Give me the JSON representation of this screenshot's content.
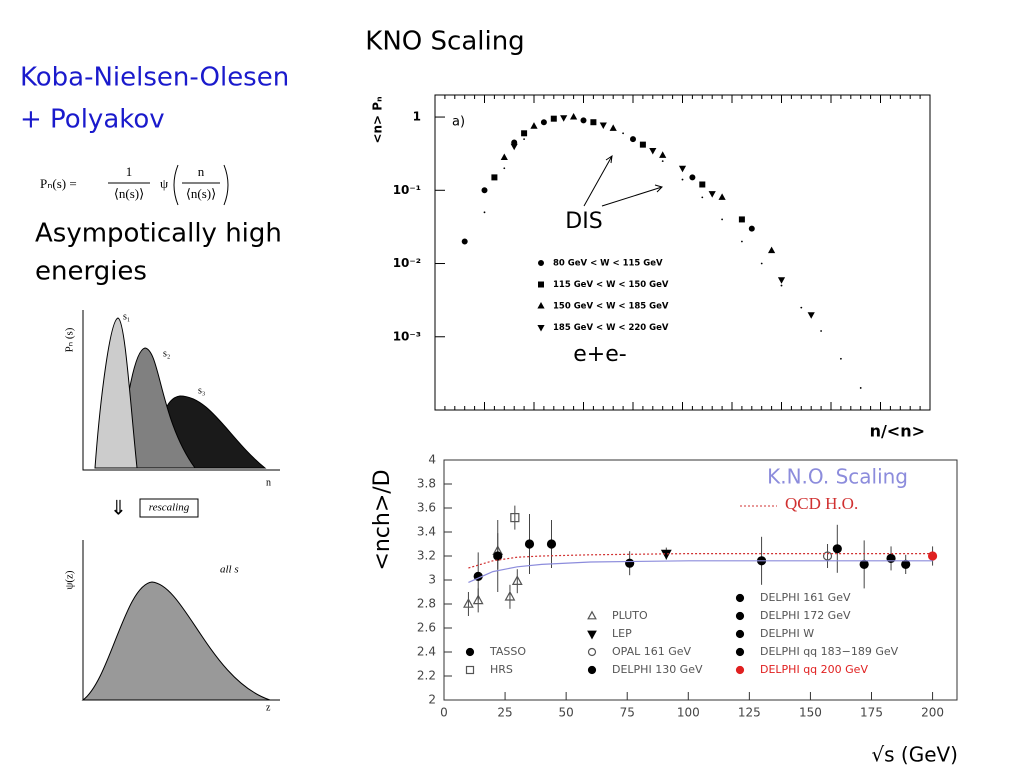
{
  "slide": {
    "title": "KNO Scaling",
    "heading": [
      "Koba-Nielsen-Olesen",
      "+ Polyakov"
    ],
    "formula": {
      "lhs": "Pₙ(s) =",
      "num": "1",
      "den": "⟨n(s)⟩",
      "psi": "ψ",
      "arg_num": "n",
      "arg_den": "⟨n(s)⟩"
    },
    "text": [
      "Asympotically high",
      "energies"
    ]
  },
  "sketch": {
    "top": {
      "y_label": "Pₙ (s)",
      "x_label": "n",
      "curves": [
        "s₁",
        "s₂",
        "s₃"
      ]
    },
    "arrow_label": "rescaling",
    "bottom": {
      "y_label": "ψ(z)",
      "x_label": "z",
      "note": "all s"
    }
  },
  "chart_data": [
    {
      "type": "scatter",
      "y_label": "<n> Pₙ",
      "x_label": "n/<n>",
      "panel_label": "a)",
      "log_y": true,
      "xlim": [
        0,
        5
      ],
      "ylim": [
        0.0001,
        2
      ],
      "yticks": [
        1,
        {
          "value": 0.1,
          "label": "10⁻¹"
        },
        {
          "value": 0.01,
          "label": "10⁻²"
        },
        {
          "value": 0.001,
          "label": "10⁻³"
        }
      ],
      "annotation": "DIS",
      "series": [
        {
          "name": "80 GeV < W < 115 GeV",
          "marker": "circle",
          "color": "#000000",
          "x": [
            0.3,
            0.5,
            0.8,
            1.1,
            1.5,
            2.0,
            2.6,
            3.2
          ],
          "values": [
            0.02,
            0.1,
            0.45,
            0.85,
            0.9,
            0.5,
            0.15,
            0.03
          ]
        },
        {
          "name": "115 GeV < W < 150 GeV",
          "marker": "square",
          "color": "#000000",
          "x": [
            0.6,
            0.9,
            1.2,
            1.6,
            2.1,
            2.7,
            3.1
          ],
          "values": [
            0.15,
            0.6,
            0.95,
            0.85,
            0.42,
            0.12,
            0.04
          ]
        },
        {
          "name": "150 GeV < W < 185 GeV",
          "marker": "triangle",
          "color": "#000000",
          "x": [
            0.7,
            1.0,
            1.4,
            1.8,
            2.3,
            2.9,
            3.4
          ],
          "values": [
            0.28,
            0.75,
            1.0,
            0.7,
            0.3,
            0.08,
            0.015
          ]
        },
        {
          "name": "185 GeV < W < 220 GeV",
          "marker": "triangle-down",
          "color": "#000000",
          "x": [
            0.8,
            1.3,
            1.7,
            2.2,
            2.5,
            2.8,
            3.5,
            3.8
          ],
          "values": [
            0.4,
            0.98,
            0.78,
            0.35,
            0.2,
            0.09,
            0.006,
            0.002
          ]
        },
        {
          "name": "e+e-",
          "marker": "dot",
          "color": "#000000",
          "x": [
            0.5,
            0.7,
            0.9,
            1.1,
            1.3,
            1.5,
            1.7,
            1.9,
            2.1,
            2.3,
            2.5,
            2.7,
            2.9,
            3.1,
            3.3,
            3.5,
            3.7,
            3.9,
            4.1,
            4.3
          ],
          "values": [
            0.05,
            0.2,
            0.5,
            0.85,
            1.0,
            0.95,
            0.8,
            0.6,
            0.4,
            0.25,
            0.14,
            0.08,
            0.04,
            0.02,
            0.01,
            0.005,
            0.0025,
            0.0012,
            0.0005,
            0.0002
          ]
        }
      ]
    },
    {
      "type": "scatter",
      "y_label": "<nch>/D",
      "x_label": "√s (GeV)",
      "xlim": [
        0,
        210
      ],
      "ylim": [
        2,
        4
      ],
      "xticks": [
        0,
        25,
        50,
        75,
        100,
        125,
        150,
        175,
        200
      ],
      "yticks": [
        2,
        2.2,
        2.4,
        2.6,
        2.8,
        3,
        3.2,
        3.4,
        3.6,
        3.8,
        4
      ],
      "series": [
        {
          "name": "PLUTO",
          "marker": "triangle-open",
          "color": "#555555",
          "x": [
            10,
            14,
            22,
            27,
            30
          ],
          "values": [
            2.8,
            2.83,
            3.24,
            2.86,
            2.99
          ],
          "errors": [
            0.1,
            0.1,
            0.15,
            0.1,
            0.1
          ]
        },
        {
          "name": "LEP",
          "marker": "triangle-down",
          "color": "#000000",
          "x": [
            91
          ],
          "values": [
            3.22
          ],
          "errors": [
            0.05
          ]
        },
        {
          "name": "OPAL 161 GeV",
          "marker": "circle-open",
          "color": "#555555",
          "x": [
            157
          ],
          "values": [
            3.2
          ],
          "errors": [
            0.1
          ]
        },
        {
          "name": "DELPHI 130 GeV",
          "marker": "circle",
          "color": "#000000",
          "x": [
            76,
            130
          ],
          "values": [
            3.14,
            3.16
          ],
          "errors": [
            0.1,
            0.2
          ]
        },
        {
          "name": "TASSO",
          "marker": "circle",
          "color": "#000000",
          "x": [
            14,
            22,
            35,
            44
          ],
          "values": [
            3.03,
            3.2,
            3.3,
            3.3
          ],
          "errors": [
            0.2,
            0.3,
            0.25,
            0.2
          ]
        },
        {
          "name": "HRS",
          "marker": "square-open",
          "color": "#555555",
          "x": [
            29
          ],
          "values": [
            3.52
          ],
          "errors": [
            0.1
          ]
        },
        {
          "name": "DELPHI 161 GeV",
          "marker": "circle",
          "color": "#000000",
          "x": [
            161
          ],
          "values": [
            3.26
          ],
          "errors": [
            0.2
          ]
        },
        {
          "name": "DELPHI 172 GeV",
          "marker": "circle",
          "color": "#000000",
          "x": [
            172
          ],
          "values": [
            3.13
          ],
          "errors": [
            0.2
          ]
        },
        {
          "name": "DELPHI W",
          "marker": "circle",
          "color": "#000000",
          "x": [
            183
          ],
          "values": [
            3.18
          ],
          "errors": [
            0.1
          ]
        },
        {
          "name": "DELPHI qq 183−189 GeV",
          "marker": "circle",
          "color": "#000000",
          "x": [
            189
          ],
          "values": [
            3.13
          ],
          "errors": [
            0.08
          ]
        },
        {
          "name": "DELPHI qq 200 GeV",
          "marker": "circle",
          "color": "#e02020",
          "x": [
            200
          ],
          "values": [
            3.2
          ],
          "errors": [
            0.08
          ]
        },
        {
          "name": "K.N.O. Scaling",
          "marker": "line",
          "color": "#8c8cdc",
          "x": [
            10,
            20,
            30,
            40,
            60,
            100,
            150,
            200
          ],
          "values": [
            2.98,
            3.07,
            3.11,
            3.13,
            3.15,
            3.16,
            3.16,
            3.16
          ]
        },
        {
          "name": "QCD H.O.",
          "marker": "dashed",
          "color": "#d03030",
          "x": [
            10,
            20,
            30,
            40,
            60,
            100,
            150,
            200
          ],
          "values": [
            3.1,
            3.16,
            3.19,
            3.2,
            3.21,
            3.22,
            3.22,
            3.22
          ]
        }
      ]
    }
  ]
}
